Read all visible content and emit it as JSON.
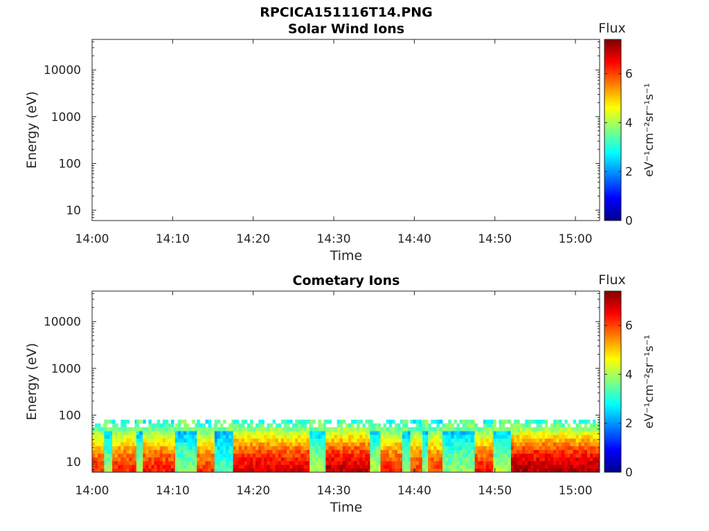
{
  "figure": {
    "filename_title": "RPCICA151116T14.PNG"
  },
  "colormap": [
    "#00008f",
    "#0000ff",
    "#0080ff",
    "#00ffff",
    "#80ff80",
    "#ffff00",
    "#ff8000",
    "#ff0000",
    "#800000"
  ],
  "chart_data": [
    {
      "type": "heatmap",
      "title": "Solar Wind Ions",
      "xlabel": "Time",
      "ylabel": "Energy (eV)",
      "x_ticks": [
        "14:00",
        "14:10",
        "14:20",
        "14:30",
        "14:40",
        "14:50",
        "15:00"
      ],
      "x_range_minutes": [
        0,
        63
      ],
      "y_scale": "log",
      "y_ticks": [
        "10",
        "100",
        "1000",
        "10000"
      ],
      "y_range": [
        6,
        45000
      ],
      "colorbar": {
        "label": "Flux",
        "unit": "eV⁻¹cm⁻²sr⁻¹s⁻¹",
        "ticks": [
          "0",
          "2",
          "4",
          "6"
        ],
        "range": [
          0,
          7.4
        ]
      },
      "data": "empty"
    },
    {
      "type": "heatmap",
      "title": "Cometary Ions",
      "xlabel": "Time",
      "ylabel": "Energy (eV)",
      "x_ticks": [
        "14:00",
        "14:10",
        "14:20",
        "14:30",
        "14:40",
        "14:50",
        "15:00"
      ],
      "x_range_minutes": [
        0,
        63
      ],
      "y_scale": "log",
      "y_ticks": [
        "10",
        "100",
        "1000",
        "10000"
      ],
      "y_range": [
        6,
        45000
      ],
      "colorbar": {
        "label": "Flux",
        "unit": "eV⁻¹cm⁻²sr⁻¹s⁻¹",
        "ticks": [
          "0",
          "2",
          "4",
          "6"
        ],
        "range": [
          0,
          7.4
        ]
      },
      "energy_range_observed_eV": [
        6,
        80
      ],
      "intensity_segments": [
        {
          "start": 0.0,
          "end": 1.5,
          "peak": 6.2
        },
        {
          "start": 1.5,
          "end": 2.5,
          "peak": 3.8
        },
        {
          "start": 2.5,
          "end": 5.5,
          "peak": 6.3
        },
        {
          "start": 5.5,
          "end": 6.3,
          "peak": 3.9
        },
        {
          "start": 6.3,
          "end": 10.3,
          "peak": 6.4
        },
        {
          "start": 10.3,
          "end": 13.0,
          "peak": 3.7
        },
        {
          "start": 13.0,
          "end": 15.2,
          "peak": 6.2
        },
        {
          "start": 15.2,
          "end": 17.5,
          "peak": 3.4
        },
        {
          "start": 17.5,
          "end": 27.0,
          "peak": 6.8
        },
        {
          "start": 27.0,
          "end": 29.0,
          "peak": 4.0
        },
        {
          "start": 29.0,
          "end": 34.5,
          "peak": 7.0
        },
        {
          "start": 34.5,
          "end": 35.8,
          "peak": 4.1
        },
        {
          "start": 35.8,
          "end": 38.5,
          "peak": 6.3
        },
        {
          "start": 38.5,
          "end": 39.5,
          "peak": 3.8
        },
        {
          "start": 39.5,
          "end": 41.0,
          "peak": 6.1
        },
        {
          "start": 41.0,
          "end": 41.7,
          "peak": 3.7
        },
        {
          "start": 41.7,
          "end": 43.5,
          "peak": 6.1
        },
        {
          "start": 43.5,
          "end": 47.5,
          "peak": 3.8
        },
        {
          "start": 47.5,
          "end": 49.8,
          "peak": 6.4
        },
        {
          "start": 49.8,
          "end": 52.0,
          "peak": 4.0
        },
        {
          "start": 52.0,
          "end": 63.0,
          "peak": 7.1
        }
      ]
    }
  ]
}
